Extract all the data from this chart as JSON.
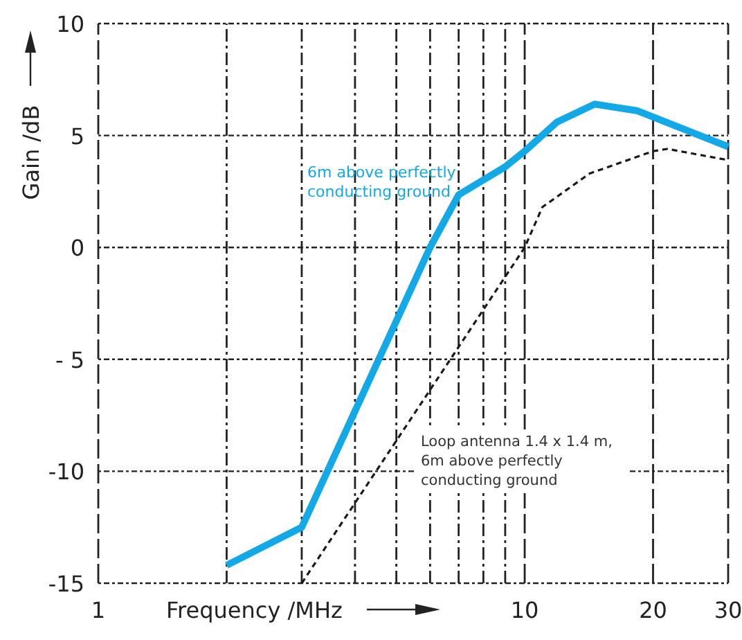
{
  "chart_data": {
    "type": "line",
    "xlabel": "Frequency /MHz",
    "ylabel": "Gain /dB",
    "log": "x",
    "grid": true,
    "xlim": [
      1,
      30
    ],
    "xticks": [
      1,
      {
        "value": 2,
        "label": null
      },
      {
        "value": 3,
        "label": null
      },
      {
        "value": 4,
        "label": null
      },
      {
        "value": 5,
        "label": null
      },
      {
        "value": 6,
        "label": null
      },
      {
        "value": 7,
        "label": null
      },
      {
        "value": 8,
        "label": null
      },
      {
        "value": 9,
        "label": null
      },
      10,
      20,
      30
    ],
    "ylim": [
      -15,
      10
    ],
    "yticks": [
      -15,
      -10,
      {
        "value": -5,
        "label": "- 5"
      },
      0,
      5,
      10
    ],
    "series": [
      {
        "name": "6m above perfectly conducting ground",
        "color": "#12a9e6",
        "line_style": "solid",
        "x": [
          2,
          3,
          6,
          7,
          9,
          10,
          11.9,
          14.6,
          18.4,
          30
        ],
        "values": [
          -14.2,
          -12.5,
          0,
          2.35,
          3.6,
          4.3,
          5.6,
          6.4,
          6.1,
          4.5
        ]
      },
      {
        "name": "Loop antenna 1.4 x 1.4 m, 6m above perfectly conducting ground",
        "color": "#1a1a1a",
        "line_style": "dashed",
        "x": [
          3,
          10,
          11,
          14.2,
          20,
          21.6,
          30
        ],
        "values": [
          -15,
          0,
          1.8,
          3.3,
          4.3,
          4.4,
          3.9
        ]
      }
    ]
  }
}
